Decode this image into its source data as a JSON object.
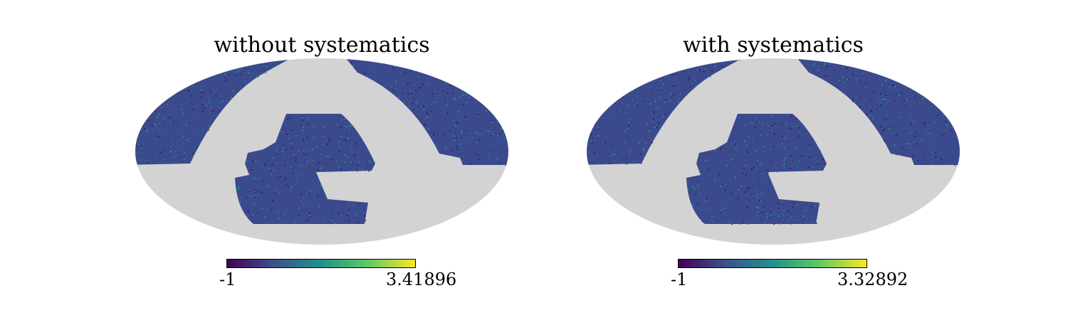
{
  "panels": [
    {
      "id": "without",
      "title": "without systematics",
      "colorbar": {
        "min_label": "-1",
        "max_label": "3.41896",
        "colormap": "viridis"
      }
    },
    {
      "id": "with",
      "title": "with systematics",
      "colorbar": {
        "min_label": "-1",
        "max_label": "3.32892",
        "colormap": "viridis"
      }
    }
  ],
  "colors": {
    "mask": "#d3d3d3",
    "data_base": "#3b4a8c",
    "data_speckle": [
      "#2c3e7a",
      "#45528f",
      "#2a788e",
      "#22a884",
      "#440154"
    ]
  }
}
